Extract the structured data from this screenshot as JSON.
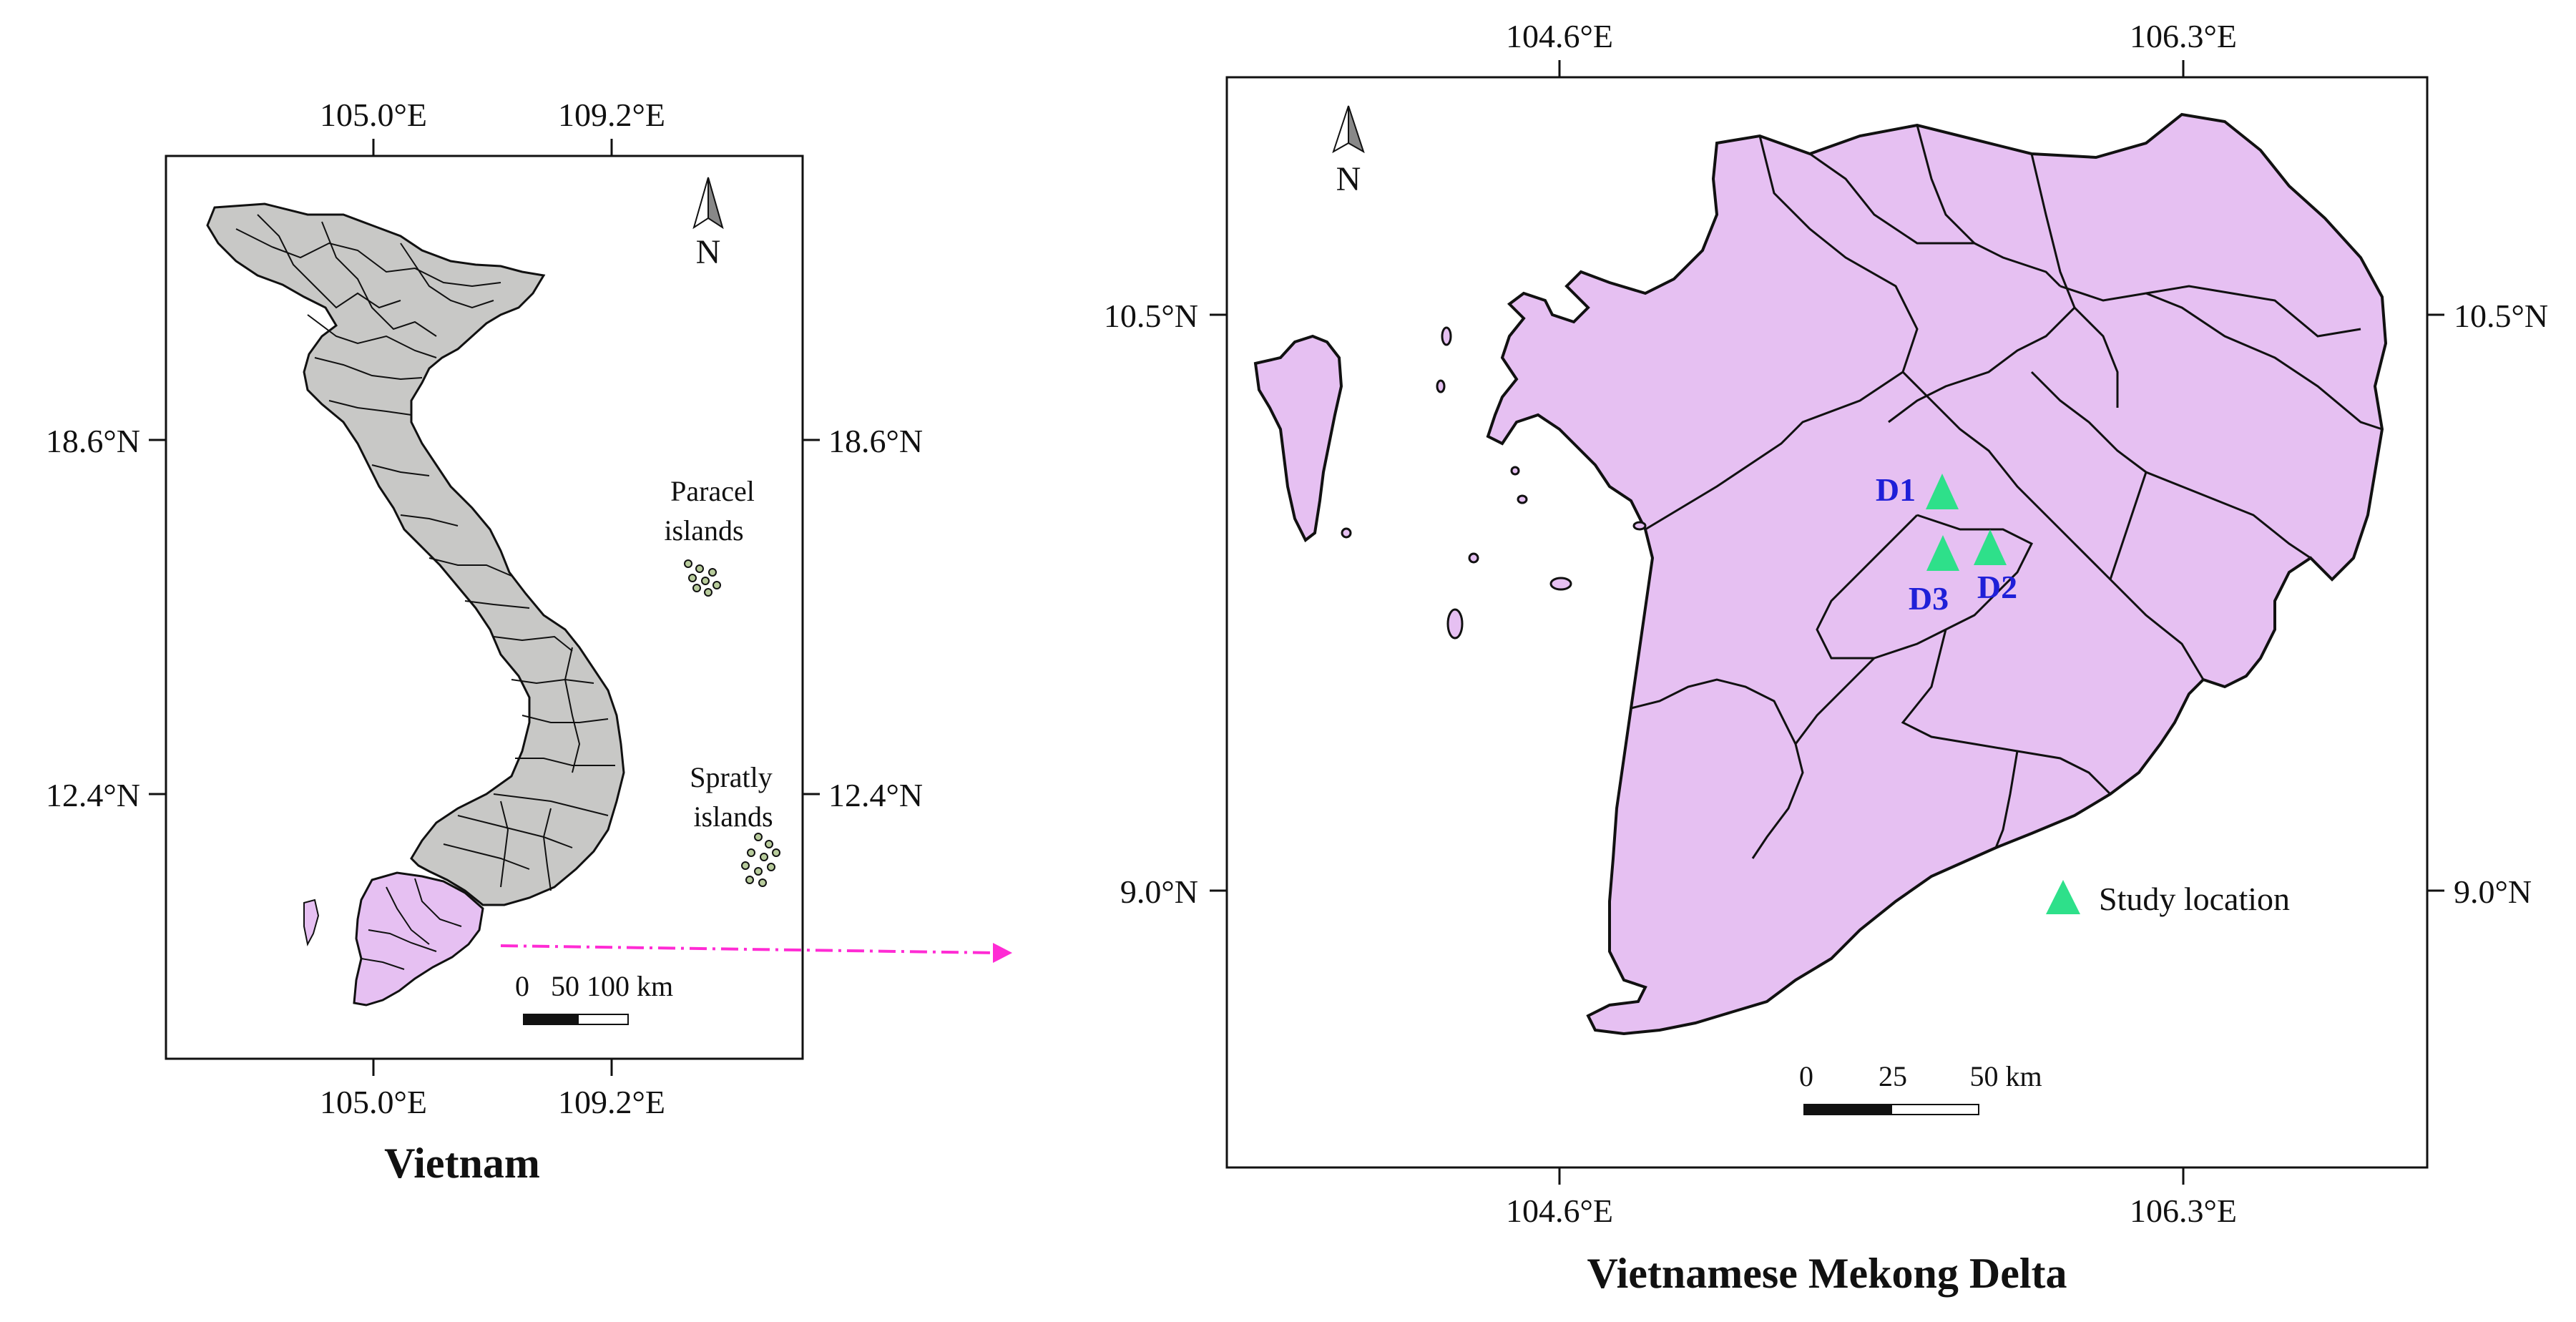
{
  "left_map": {
    "title": "Vietnam",
    "lon_labels": [
      "105.0°E",
      "109.2°E"
    ],
    "lat_labels": [
      "18.6°N",
      "12.4°N"
    ],
    "north_label": "N",
    "paracel_label_1": "Paracel",
    "paracel_label_2": "islands",
    "spratly_label_1": "Spratly",
    "spratly_label_2": "islands",
    "scale_label": "0   50 100 km",
    "colors": {
      "country": "#c8c8c6",
      "highlight": "#e6c0f2",
      "arrow": "#ff2bd4"
    }
  },
  "right_map": {
    "title": "Vietnamese Mekong Delta",
    "lon_labels": [
      "104.6°E",
      "106.3°E"
    ],
    "lat_labels": [
      "10.5°N",
      "9.0°N"
    ],
    "north_label": "N",
    "scale_labels": [
      "0",
      "25",
      "50 km"
    ],
    "legend_label": "Study location",
    "sites": [
      {
        "name": "D1"
      },
      {
        "name": "D2"
      },
      {
        "name": "D3"
      }
    ],
    "colors": {
      "land": "#e6c0f2",
      "marker": "#2ee08a",
      "site_text": "#1f1fd8"
    }
  }
}
